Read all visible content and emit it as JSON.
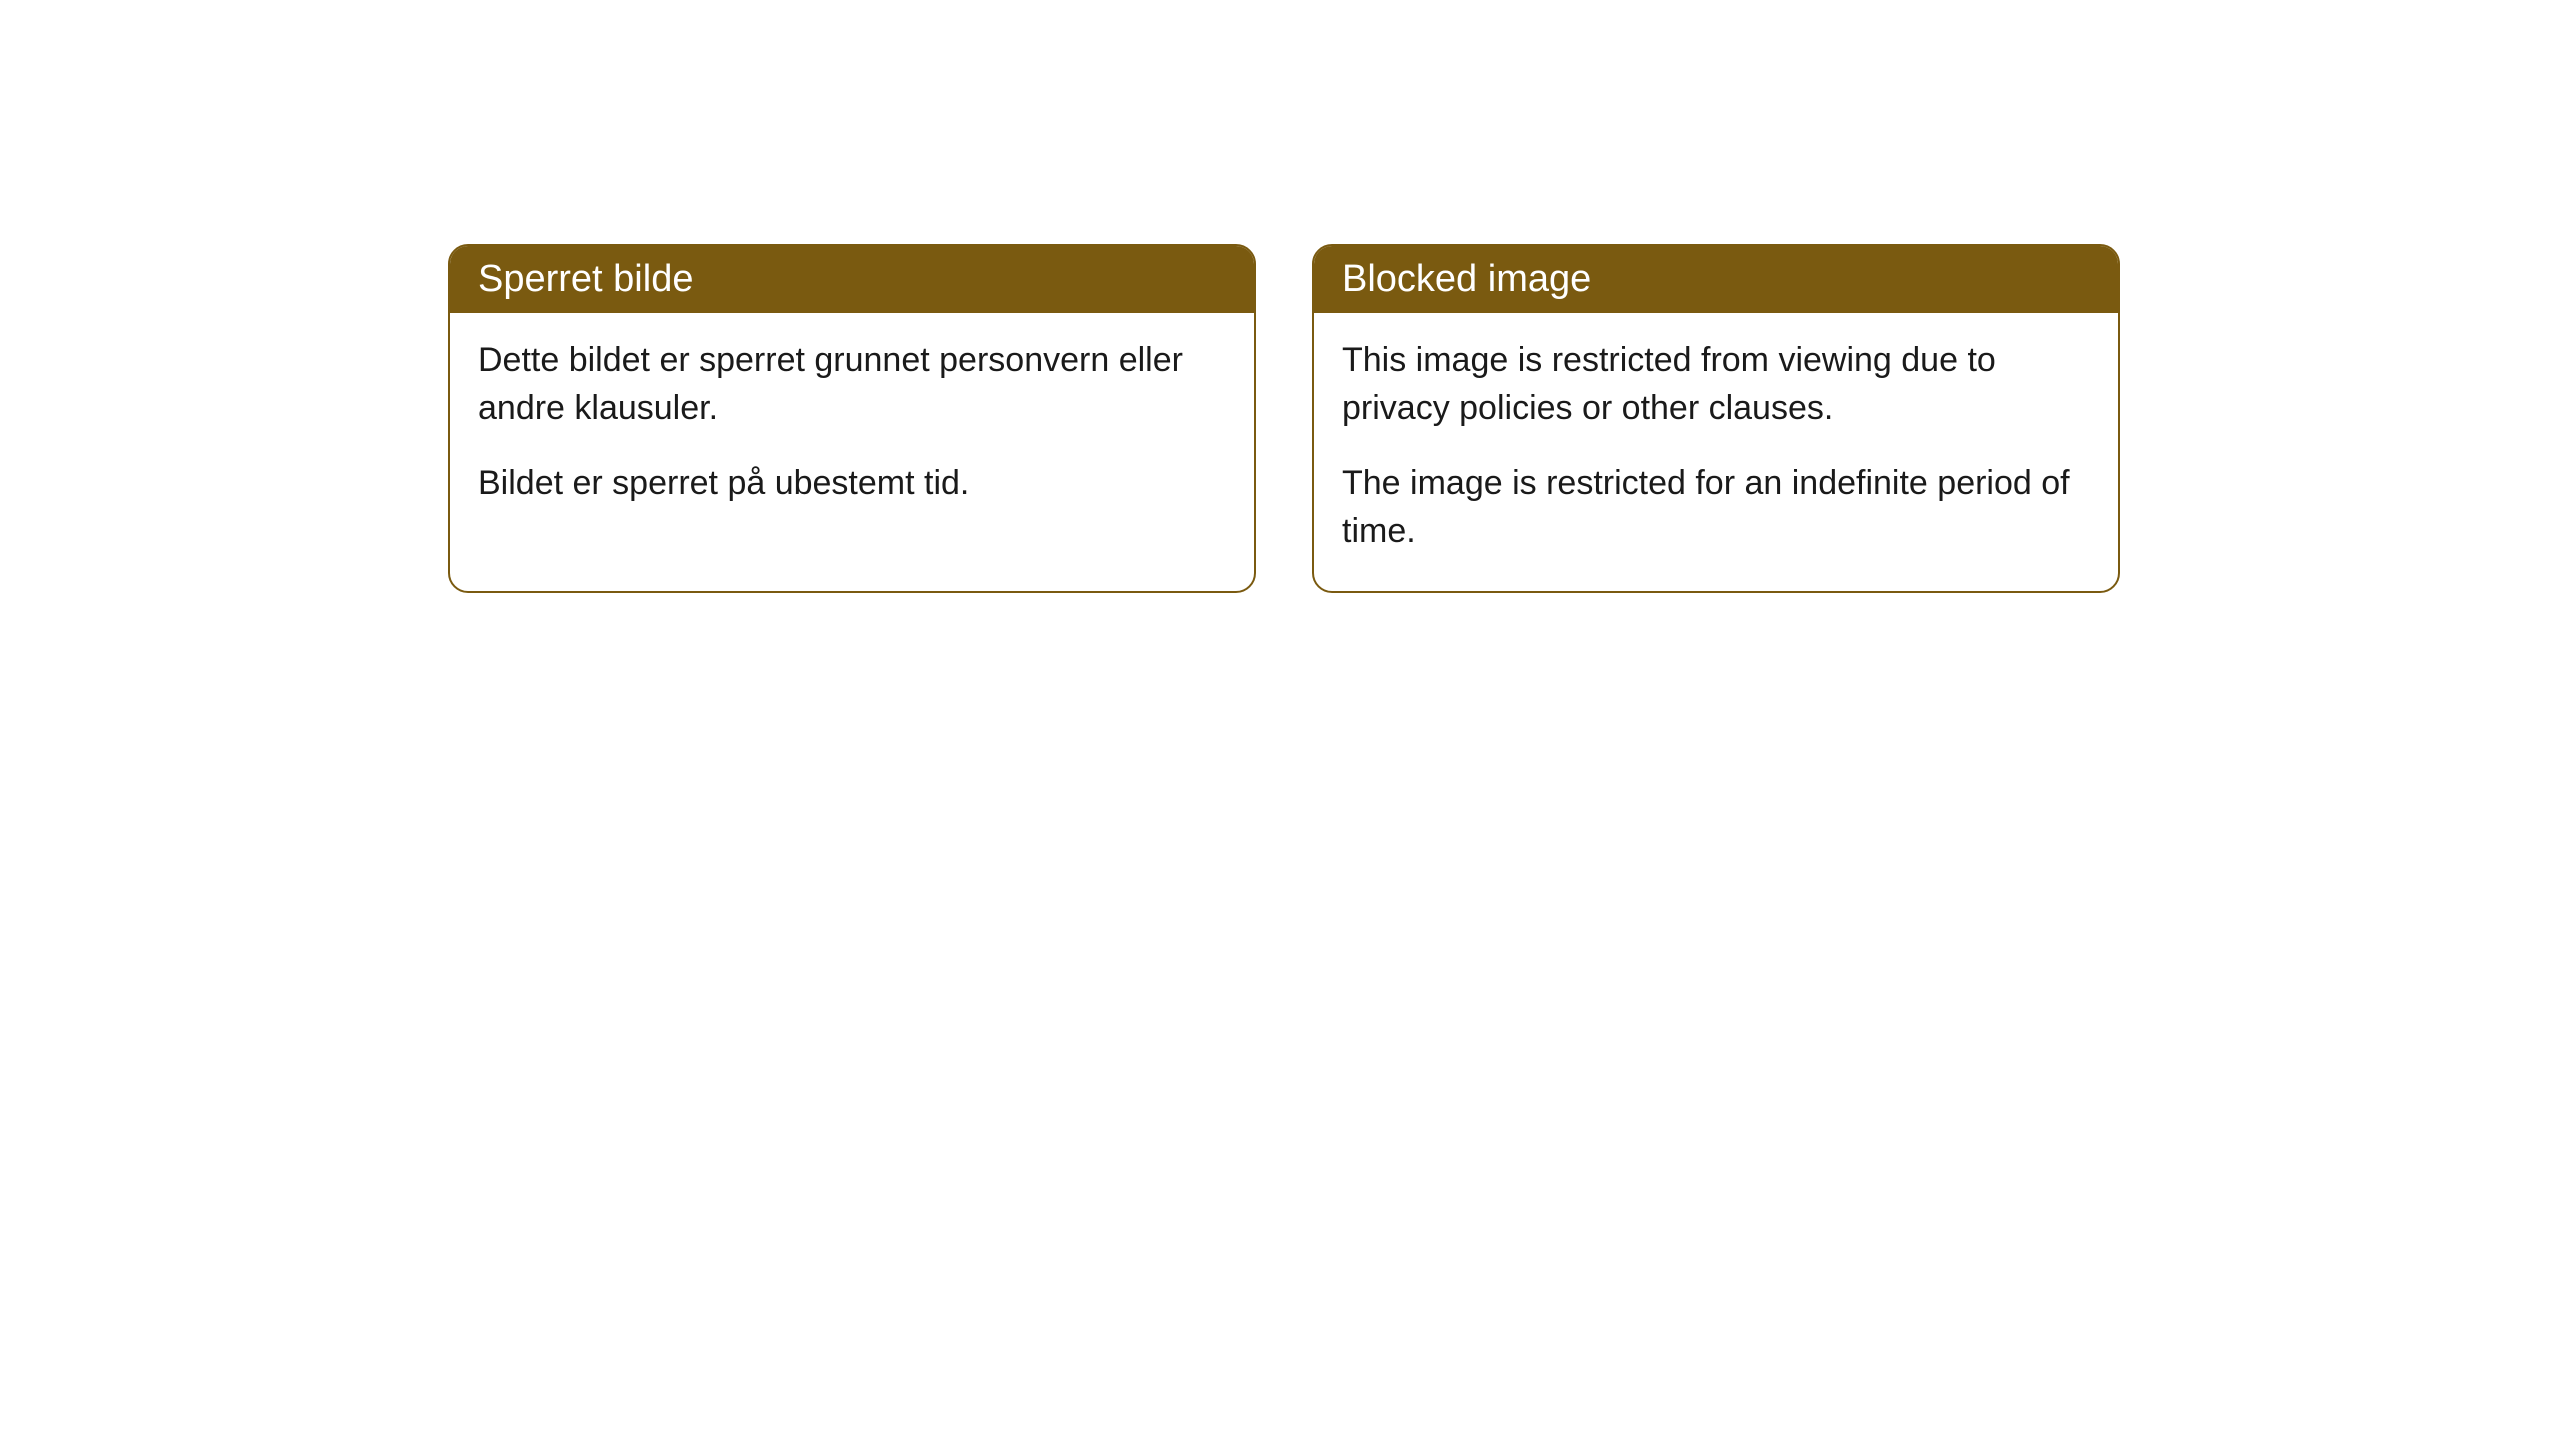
{
  "cards": [
    {
      "title": "Sperret bilde",
      "paragraph1": "Dette bildet er sperret grunnet personvern eller andre klausuler.",
      "paragraph2": "Bildet er sperret på ubestemt tid."
    },
    {
      "title": "Blocked image",
      "paragraph1": "This image is restricted from viewing due to privacy policies or other clauses.",
      "paragraph2": "The image is restricted for an indefinite period of time."
    }
  ],
  "style": {
    "header_background": "#7a5a10",
    "header_text_color": "#ffffff",
    "border_color": "#7a5a10",
    "body_text_color": "#1a1a1a",
    "page_background": "#ffffff",
    "border_radius": 20,
    "title_fontsize": 38,
    "body_fontsize": 34
  }
}
